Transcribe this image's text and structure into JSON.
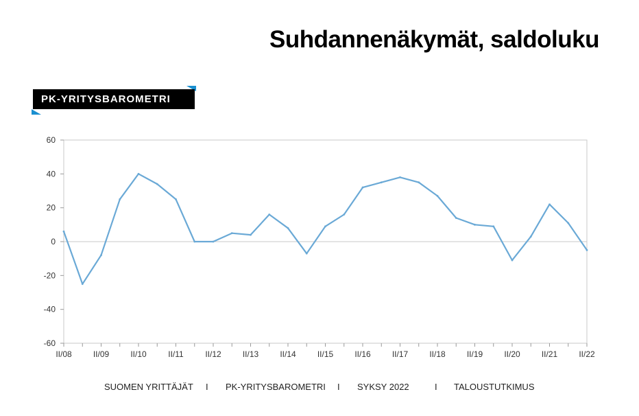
{
  "page": {
    "title": "Suhdannenäkymät, saldoluku",
    "badge": "PK-YRITYSBAROMETRI"
  },
  "colors": {
    "line": "#6aa9d6",
    "accent": "#1a8fd0",
    "badge_bg": "#000000"
  },
  "footer": {
    "org": "SUOMEN YRITTÄJÄT",
    "sep1": "I",
    "survey": "PK-YRITYSBAROMETRI",
    "sep2": "I",
    "period": "SYKSY 2022",
    "sep3": "I",
    "unit": "TALOUSTUTKIMUS"
  },
  "chart_data": {
    "type": "line",
    "title": "Suhdannenäkymät, saldoluku",
    "xlabel": "",
    "ylabel": "",
    "ylim": [
      -60,
      60
    ],
    "yticks": [
      -60,
      -40,
      -20,
      0,
      20,
      40,
      60
    ],
    "grid": false,
    "x": [
      "II/08",
      "I/09",
      "II/09",
      "I/10",
      "II/10",
      "I/11",
      "II/11",
      "I/12",
      "II/12",
      "I/13",
      "II/13",
      "I/14",
      "II/14",
      "I/15",
      "II/15",
      "I/16",
      "II/16",
      "I/17",
      "II/17",
      "I/18",
      "II/18",
      "I/19",
      "II/19",
      "I/20",
      "II/20",
      "I/21",
      "II/21",
      "I/22",
      "II/22"
    ],
    "xtick_labels": [
      "II/08",
      "II/09",
      "II/10",
      "II/11",
      "II/12",
      "II/13",
      "II/14",
      "II/15",
      "II/16",
      "II/17",
      "II/18",
      "II/19",
      "II/20",
      "II/21",
      "II/22"
    ],
    "series": [
      {
        "values": [
          6,
          -25,
          -8,
          25,
          40,
          34,
          25,
          0,
          0,
          5,
          4,
          16,
          8,
          -7,
          9,
          16,
          32,
          35,
          38,
          35,
          27,
          14,
          10,
          9,
          -11,
          3,
          22,
          11,
          -5
        ]
      }
    ]
  }
}
